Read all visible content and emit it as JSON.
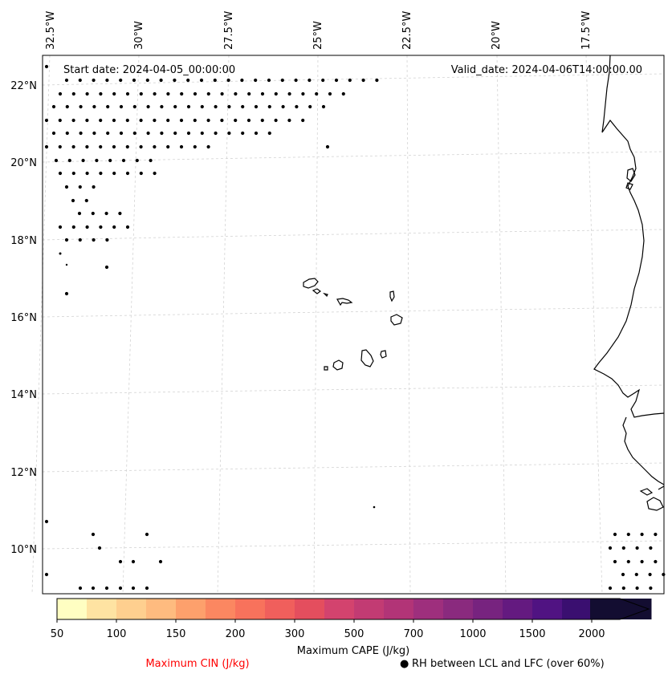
{
  "map": {
    "start_date": "Start date: 2024-04-05_00:00:00",
    "valid_date": "Valid_date: 2024-04-06T14:00:00.00",
    "lon_labels": [
      "32.5°W",
      "30°W",
      "27.5°W",
      "25°W",
      "22.5°W",
      "20°W",
      "17.5°W"
    ],
    "lat_labels": [
      "22°N",
      "20°N",
      "18°N",
      "16°N",
      "14°N",
      "12°N",
      "10°N"
    ]
  },
  "colorbar": {
    "label": "Maximum CAPE (J/kg)",
    "ticks": [
      "50",
      "100",
      "150",
      "200",
      "300",
      "500",
      "700",
      "1000",
      "1500",
      "2000"
    ],
    "colors": [
      "#fffec2",
      "#fee3a2",
      "#fecf8f",
      "#febb7f",
      "#fda06c",
      "#fb8761",
      "#f8725c",
      "#f05f5c",
      "#e44e5e",
      "#d3436e",
      "#c23b73",
      "#b23477",
      "#9e2f7d",
      "#8a2a7e",
      "#77237f",
      "#641a80",
      "#501382",
      "#3a0f70",
      "#241551",
      "#130d31"
    ]
  },
  "legend": {
    "cin_label": "Maximum CIN (J/kg)",
    "cin_color": "#ff0000",
    "rh_label": "RH between LCL and LFC (over 60%)",
    "rh_marker": "●"
  }
}
